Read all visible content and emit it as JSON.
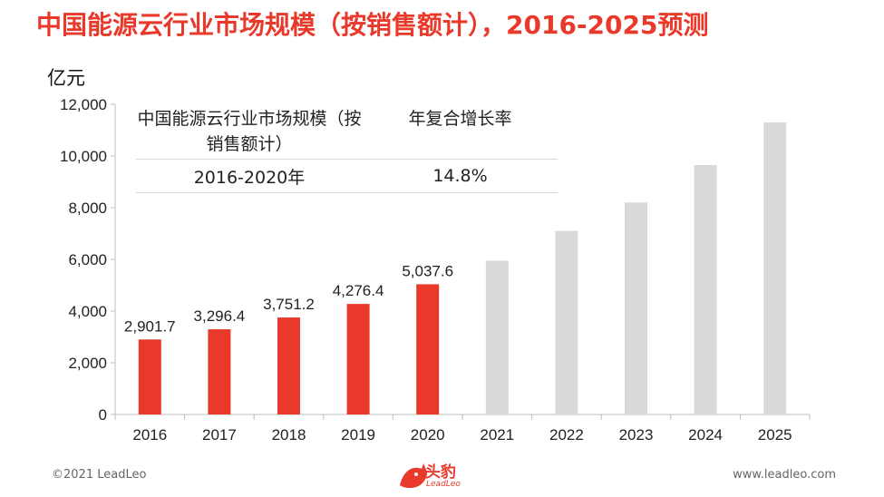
{
  "title": "中国能源云行业市场规模（按销售额计），2016-2025预测",
  "unit_label": "亿元",
  "cagr_table": {
    "header": [
      "中国能源云行业市场规模（按销售额计）",
      "年复合增长率"
    ],
    "rows": [
      [
        "2016-2020年",
        "14.8%"
      ]
    ]
  },
  "footer": {
    "copyright": "©2021 LeadLeo",
    "website": "www.leadleo.com",
    "logo_text": "头豹",
    "logo_sub": "LeadLeo"
  },
  "colors": {
    "actual": "#e8392b",
    "forecast": "#d9d9d9",
    "title": "#e8392b"
  },
  "chart_data": {
    "type": "bar",
    "categories": [
      "2016",
      "2017",
      "2018",
      "2019",
      "2020",
      "2021",
      "2022",
      "2023",
      "2024",
      "2025"
    ],
    "values": [
      2901.7,
      3296.4,
      3751.2,
      4276.4,
      5037.6,
      5950,
      7100,
      8200,
      9650,
      11300
    ],
    "data_labels": [
      "2,901.7",
      "3,296.4",
      "3,751.2",
      "4,276.4",
      "5,037.6",
      "",
      "",
      "",
      "",
      ""
    ],
    "bar_colors": [
      "actual",
      "actual",
      "actual",
      "actual",
      "actual",
      "forecast",
      "forecast",
      "forecast",
      "forecast",
      "forecast"
    ],
    "ylim": [
      0,
      12000
    ],
    "yticks": [
      0,
      2000,
      4000,
      6000,
      8000,
      10000,
      12000
    ],
    "ytick_labels": [
      "0",
      "2,000",
      "4,000",
      "6,000",
      "8,000",
      "10,000",
      "12,000"
    ],
    "grid": false
  }
}
